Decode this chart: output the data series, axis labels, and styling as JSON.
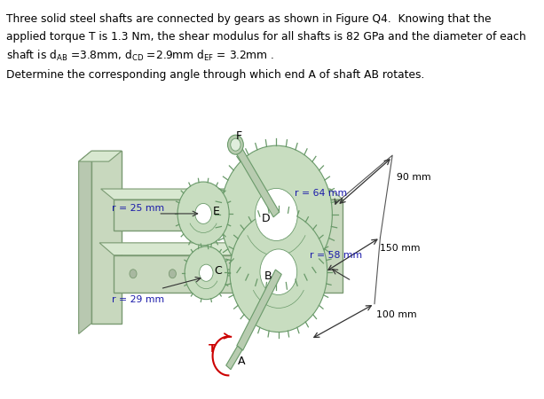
{
  "bg_color": "#ffffff",
  "text_lines": [
    "Three solid steel shafts are connected by gears as shown in Figure Q4.  Knowing that the",
    "applied torque T is 1.3 Nm, the shear modulus for all shafts is 82 GPa and the diameter of each",
    "shaft is d$_{AB}$ =3.8mm, d$_{CD}$ =2.9mm d$_{EF}$ = 3.2mm ."
  ],
  "question": "Determine the corresponding angle through which end A of shaft AB rotates.",
  "gear_color": "#c8ddc0",
  "gear_edge": "#6a9a6a",
  "shaft_color": "#b8ccb0",
  "frame_color": "#c8d8be",
  "frame_edge": "#7a9a72",
  "label_color_black": "#222222",
  "label_color_blue": "#1a1aaa",
  "label_color_red": "#cc0000",
  "figure_width": 6.13,
  "figure_height": 4.5,
  "dpi": 100
}
